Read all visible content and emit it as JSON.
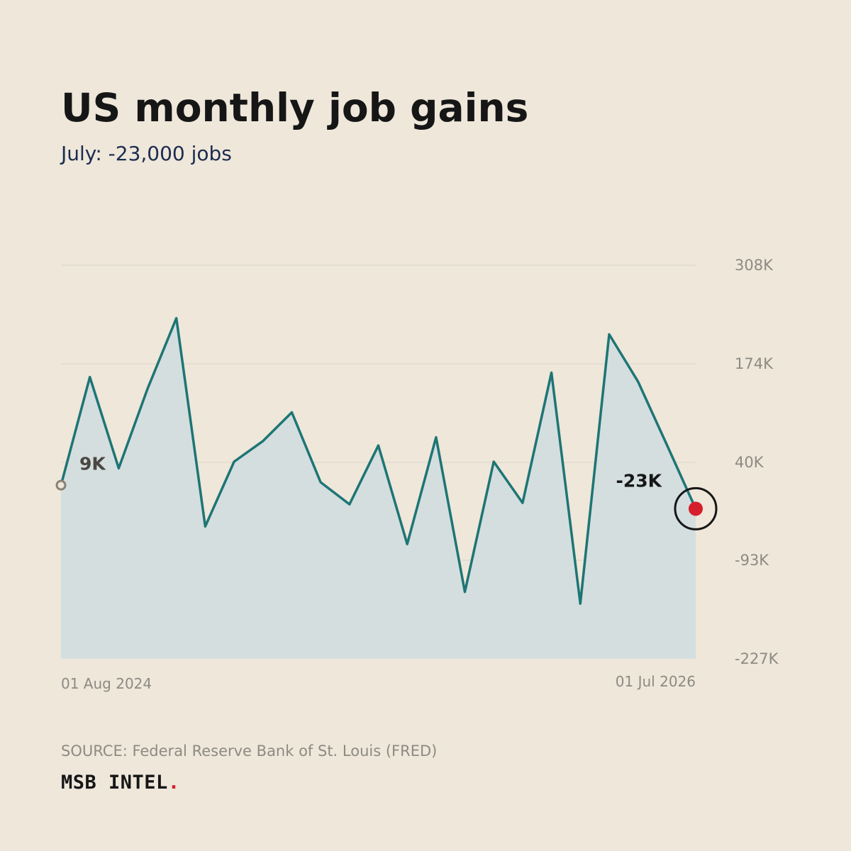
{
  "header": {
    "title": "US monthly job gains",
    "subtitle": "July: -23,000 jobs"
  },
  "footer": {
    "source": "SOURCE: Federal Reserve Bank of St. Louis (FRED)",
    "brand": "MSB INTEL",
    "brand_dot": "."
  },
  "colors": {
    "background": "#EEE7DA",
    "line": "#1E7575",
    "area": "#D4DEDF",
    "gridline": "#DAD3C8",
    "tick_text": "#8E8A83",
    "highlight": "#D61F2C",
    "start_label": "#4A4642",
    "end_label": "#161616"
  },
  "chart_data": {
    "type": "area",
    "title": "US monthly job gains",
    "subtitle": "July: -23,000 jobs",
    "xlabel": "",
    "ylabel": "",
    "x_tick_labels": [
      "01 Aug 2024",
      "01 Jul 2026"
    ],
    "y_ticks": [
      308,
      174,
      40,
      -93,
      -227
    ],
    "y_tick_labels": [
      "308K",
      "174K",
      "40K",
      "-93K",
      "-227K"
    ],
    "ylim": [
      -227,
      308
    ],
    "y_unit": "thousands of jobs",
    "grid": true,
    "axis_side": "right",
    "series": [
      {
        "values": [
          9,
          156,
          32,
          140,
          236,
          -47,
          41,
          69,
          108,
          13,
          -17,
          63,
          -71,
          74,
          -136,
          41,
          -15,
          162,
          -152,
          214,
          150,
          64,
          -23
        ]
      }
    ],
    "annotations": {
      "start_label": "9K",
      "end_label": "-23K"
    }
  }
}
